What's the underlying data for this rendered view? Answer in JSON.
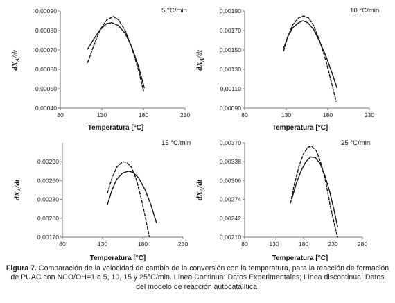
{
  "chart_data": [
    {
      "type": "line",
      "annotation": "5 °C/min",
      "xlabel": "Temperatura [°C]",
      "ylabel": "dX",
      "ylabel_sub": "A",
      "ylabel_tail": "/dt",
      "xlim": [
        80,
        230
      ],
      "ylim": [
        0.0004,
        0.0009
      ],
      "x_ticks": [
        "80",
        "130",
        "180",
        "230"
      ],
      "y_ticks": [
        "0,00040",
        "0,00050",
        "0,00060",
        "0,00070",
        "0,00080",
        "0,00090"
      ],
      "series": [
        {
          "style": "solid",
          "x": [
            113,
            120,
            128,
            136,
            142,
            150,
            158,
            166,
            174,
            181
          ],
          "y": [
            0.000705,
            0.000755,
            0.000805,
            0.000836,
            0.00084,
            0.000825,
            0.000785,
            0.000715,
            0.000615,
            0.000505
          ]
        },
        {
          "style": "dashed",
          "x": [
            113,
            120,
            128,
            136,
            144,
            150,
            158,
            166,
            174,
            180
          ],
          "y": [
            0.000635,
            0.00072,
            0.000805,
            0.000855,
            0.000872,
            0.000855,
            0.0008,
            0.00071,
            0.000595,
            0.00049
          ]
        }
      ]
    },
    {
      "type": "line",
      "annotation": "10 °C/min",
      "xlabel": "Temperatura [°C]",
      "ylabel": "dX",
      "ylabel_sub": "A",
      "ylabel_tail": "/dt",
      "xlim": [
        80,
        230
      ],
      "ylim": [
        0.0009,
        0.0019
      ],
      "x_ticks": [
        "80",
        "130",
        "180",
        "230"
      ],
      "y_ticks": [
        "0,00090",
        "0,00110",
        "0,00130",
        "0,00150",
        "0,00170",
        "0,00190"
      ],
      "series": [
        {
          "style": "solid",
          "x": [
            127,
            132,
            138,
            145,
            150,
            156,
            163,
            170,
            178,
            186,
            191
          ],
          "y": [
            0.00152,
            0.00164,
            0.00173,
            0.00178,
            0.0018,
            0.00178,
            0.00171,
            0.00159,
            0.00143,
            0.00124,
            0.00111
          ]
        },
        {
          "style": "dashed",
          "x": [
            127,
            132,
            138,
            145,
            151,
            157,
            163,
            170,
            178,
            186,
            190
          ],
          "y": [
            0.00149,
            0.00164,
            0.00176,
            0.00183,
            0.00185,
            0.00183,
            0.00175,
            0.0016,
            0.00138,
            0.00111,
            0.00097
          ]
        }
      ]
    },
    {
      "type": "line",
      "annotation": "15 °C/min",
      "xlabel": "Temperatura [°C]",
      "ylabel": "dX",
      "ylabel_sub": "A",
      "ylabel_tail": "/dt",
      "xlim": [
        80,
        230
      ],
      "ylim": [
        0.0017,
        0.0032
      ],
      "x_ticks": [
        "80",
        "130",
        "180",
        "230"
      ],
      "y_ticks": [
        "0,00170",
        "0,00200",
        "0,00230",
        "0,00260",
        "0,00290"
      ],
      "series": [
        {
          "style": "solid",
          "x": [
            136,
            142,
            148,
            155,
            162,
            168,
            175,
            183,
            190,
            197
          ],
          "y": [
            0.00222,
            0.00246,
            0.00263,
            0.00272,
            0.00275,
            0.00273,
            0.00264,
            0.00245,
            0.00222,
            0.00193
          ]
        },
        {
          "style": "dashed",
          "x": [
            136,
            142,
            148,
            155,
            160,
            166,
            172,
            178,
            183,
            188
          ],
          "y": [
            0.0024,
            0.00265,
            0.00282,
            0.0029,
            0.00289,
            0.00281,
            0.00262,
            0.00232,
            0.00203,
            0.00171
          ]
        }
      ]
    },
    {
      "type": "line",
      "annotation": "25 °C/min",
      "xlabel": "Temperatura [°C]",
      "ylabel": "dX",
      "ylabel_sub": "A",
      "ylabel_tail": "/dt",
      "xlim": [
        80,
        280
      ],
      "ylim": [
        0.0021,
        0.0037
      ],
      "x_ticks": [
        "80",
        "130",
        "180",
        "230",
        "280"
      ],
      "y_ticks": [
        "0,00210",
        "0,00242",
        "0,00274",
        "0,00306",
        "0,00338",
        "0,00370"
      ],
      "series": [
        {
          "style": "solid",
          "x": [
            160,
            168,
            176,
            184,
            192,
            200,
            208,
            216,
            224,
            232,
            238
          ],
          "y": [
            0.00275,
            0.00302,
            0.00323,
            0.00338,
            0.00346,
            0.00345,
            0.00335,
            0.00315,
            0.00289,
            0.00255,
            0.00227
          ]
        },
        {
          "style": "dashed",
          "x": [
            158,
            164,
            172,
            180,
            188,
            194,
            202,
            210,
            218,
            226,
            234,
            238
          ],
          "y": [
            0.00268,
            0.00298,
            0.00329,
            0.00352,
            0.00363,
            0.00364,
            0.00356,
            0.00334,
            0.00302,
            0.0026,
            0.00225,
            0.0021
          ]
        }
      ]
    }
  ],
  "caption": {
    "figure_label": "Figura 7.",
    "text": " Comparación de la velocidad de cambio de la conversión con la temperatura, para la reacción de formación de PUAC con NCO/OH=1 a 5, 10, 15 y 25°C/min. Línea Continua: Datos Experimentales; Línea discontinua: Datos del modelo de reacción autocatalítica."
  }
}
